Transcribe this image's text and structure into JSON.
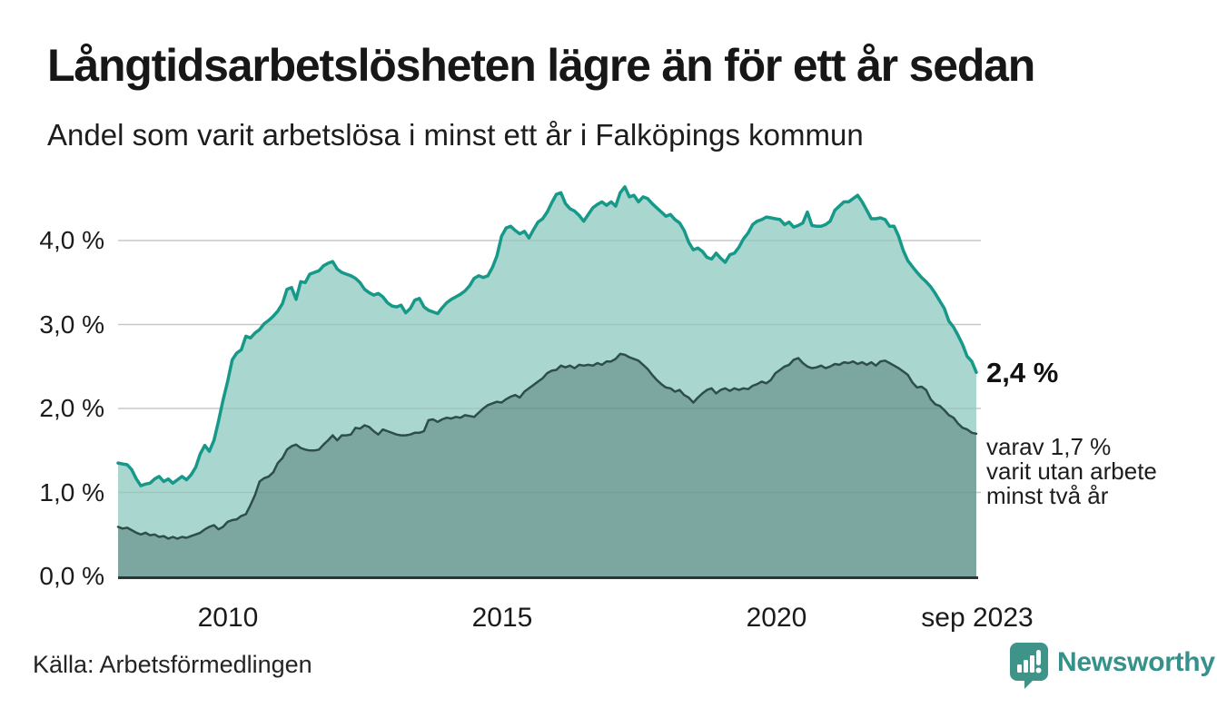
{
  "header": {
    "title": "Långtidsarbetslösheten lägre än för ett år sedan",
    "subtitle": "Andel som varit arbetslösa i minst ett år i Falköpings kommun"
  },
  "chart_data": {
    "type": "area",
    "title": "Långtidsarbetslösheten lägre än för ett år sedan",
    "subtitle": "Andel som varit arbetslösa i minst ett år i Falköpings kommun",
    "unit": "%",
    "frequency": "monthly",
    "x_range": [
      "2008-01",
      "2023-09"
    ],
    "ylim": [
      0,
      4.8
    ],
    "grid": "horizontal",
    "legend_position": "none",
    "colors": {
      "line_1plus_year": "#17998a",
      "fill_1plus_year": "#a9d6ce",
      "line_2plus_year": "#2e4e49",
      "fill_2plus_year": "#7ca7a0",
      "gridline": "#d9d9d9",
      "baseline": "#2d3533",
      "brand_teal": "#35918a"
    },
    "y_ticks": [
      {
        "label": "0,0 %",
        "value": 0
      },
      {
        "label": "1,0 %",
        "value": 1
      },
      {
        "label": "2,0 %",
        "value": 2
      },
      {
        "label": "3,0 %",
        "value": 3
      },
      {
        "label": "4,0 %",
        "value": 4
      }
    ],
    "x_ticks": [
      {
        "label": "2010",
        "month_index": 24
      },
      {
        "label": "2015",
        "month_index": 84
      },
      {
        "label": "2020",
        "month_index": 144
      },
      {
        "label": "sep 2023",
        "month_index": 188
      }
    ],
    "series": [
      {
        "name": "Andel arbetslösa minst ett år",
        "color": "#17998a",
        "fill": "#a9d6ce",
        "line_width": 3.5,
        "values": [
          1.35,
          1.34,
          1.33,
          1.27,
          1.16,
          1.08,
          1.1,
          1.11,
          1.16,
          1.19,
          1.13,
          1.16,
          1.11,
          1.15,
          1.19,
          1.15,
          1.21,
          1.3,
          1.46,
          1.56,
          1.49,
          1.62,
          1.85,
          2.1,
          2.32,
          2.58,
          2.66,
          2.7,
          2.86,
          2.84,
          2.9,
          2.94,
          3.01,
          3.05,
          3.1,
          3.16,
          3.25,
          3.42,
          3.44,
          3.3,
          3.51,
          3.5,
          3.6,
          3.62,
          3.64,
          3.7,
          3.73,
          3.75,
          3.66,
          3.62,
          3.6,
          3.58,
          3.55,
          3.5,
          3.42,
          3.38,
          3.35,
          3.37,
          3.33,
          3.26,
          3.22,
          3.21,
          3.23,
          3.14,
          3.19,
          3.29,
          3.31,
          3.21,
          3.17,
          3.15,
          3.13,
          3.2,
          3.26,
          3.3,
          3.33,
          3.36,
          3.4,
          3.46,
          3.55,
          3.58,
          3.56,
          3.58,
          3.68,
          3.82,
          4.05,
          4.15,
          4.17,
          4.12,
          4.08,
          4.11,
          4.03,
          4.13,
          4.22,
          4.26,
          4.34,
          4.45,
          4.55,
          4.57,
          4.44,
          4.38,
          4.35,
          4.3,
          4.23,
          4.31,
          4.39,
          4.43,
          4.46,
          4.42,
          4.46,
          4.41,
          4.57,
          4.64,
          4.52,
          4.54,
          4.46,
          4.52,
          4.5,
          4.44,
          4.39,
          4.34,
          4.29,
          4.31,
          4.25,
          4.21,
          4.12,
          3.98,
          3.89,
          3.91,
          3.87,
          3.8,
          3.78,
          3.85,
          3.79,
          3.74,
          3.83,
          3.85,
          3.92,
          4.02,
          4.09,
          4.19,
          4.23,
          4.25,
          4.28,
          4.27,
          4.26,
          4.25,
          4.19,
          4.22,
          4.16,
          4.18,
          4.21,
          4.34,
          4.18,
          4.17,
          4.17,
          4.19,
          4.23,
          4.36,
          4.41,
          4.46,
          4.46,
          4.5,
          4.54,
          4.46,
          4.36,
          4.26,
          4.26,
          4.27,
          4.25,
          4.17,
          4.17,
          4.05,
          3.88,
          3.76,
          3.69,
          3.62,
          3.56,
          3.51,
          3.45,
          3.37,
          3.28,
          3.19,
          3.04,
          2.97,
          2.87,
          2.76,
          2.62,
          2.56,
          2.43
        ]
      },
      {
        "name": "Varav utan arbete minst två år",
        "color": "#2e4e49",
        "fill": "#7ca7a0",
        "line_width": 2.5,
        "values": [
          0.59,
          0.57,
          0.58,
          0.55,
          0.52,
          0.5,
          0.52,
          0.49,
          0.5,
          0.47,
          0.48,
          0.45,
          0.47,
          0.45,
          0.47,
          0.46,
          0.48,
          0.5,
          0.52,
          0.56,
          0.59,
          0.61,
          0.56,
          0.59,
          0.65,
          0.67,
          0.68,
          0.72,
          0.74,
          0.85,
          0.97,
          1.13,
          1.17,
          1.19,
          1.24,
          1.35,
          1.41,
          1.51,
          1.55,
          1.57,
          1.53,
          1.51,
          1.5,
          1.5,
          1.51,
          1.57,
          1.62,
          1.68,
          1.62,
          1.68,
          1.68,
          1.69,
          1.77,
          1.76,
          1.8,
          1.78,
          1.73,
          1.69,
          1.75,
          1.73,
          1.71,
          1.69,
          1.68,
          1.68,
          1.69,
          1.71,
          1.71,
          1.73,
          1.86,
          1.87,
          1.84,
          1.87,
          1.89,
          1.88,
          1.9,
          1.89,
          1.92,
          1.91,
          1.9,
          1.95,
          2.0,
          2.04,
          2.06,
          2.08,
          2.07,
          2.11,
          2.14,
          2.16,
          2.13,
          2.2,
          2.24,
          2.28,
          2.32,
          2.36,
          2.42,
          2.45,
          2.46,
          2.51,
          2.49,
          2.51,
          2.48,
          2.52,
          2.51,
          2.52,
          2.51,
          2.54,
          2.52,
          2.56,
          2.56,
          2.59,
          2.65,
          2.64,
          2.61,
          2.59,
          2.57,
          2.52,
          2.47,
          2.4,
          2.34,
          2.29,
          2.25,
          2.24,
          2.2,
          2.22,
          2.16,
          2.13,
          2.07,
          2.13,
          2.18,
          2.22,
          2.24,
          2.18,
          2.22,
          2.24,
          2.21,
          2.24,
          2.22,
          2.24,
          2.23,
          2.27,
          2.29,
          2.32,
          2.3,
          2.34,
          2.42,
          2.46,
          2.5,
          2.52,
          2.58,
          2.6,
          2.54,
          2.5,
          2.48,
          2.49,
          2.51,
          2.48,
          2.5,
          2.53,
          2.52,
          2.55,
          2.54,
          2.56,
          2.53,
          2.55,
          2.52,
          2.55,
          2.51,
          2.56,
          2.57,
          2.54,
          2.51,
          2.48,
          2.44,
          2.4,
          2.31,
          2.25,
          2.26,
          2.22,
          2.11,
          2.05,
          2.03,
          1.98,
          1.92,
          1.89,
          1.82,
          1.77,
          1.75,
          1.71,
          1.7
        ]
      }
    ],
    "end_labels": {
      "latest_value": "2,4 %",
      "sub_lines": [
        "varav 1,7 %",
        "varit utan arbete",
        "minst två år"
      ]
    }
  },
  "footer": {
    "source": "Källa: Arbetsförmedlingen",
    "brand": "Newsworthy"
  }
}
